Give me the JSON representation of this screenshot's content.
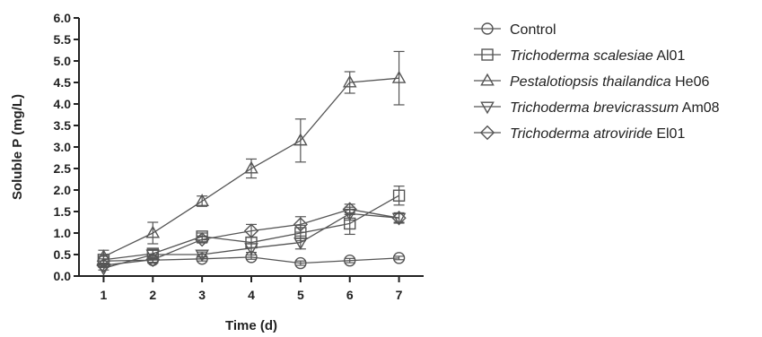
{
  "chart_data": {
    "type": "line",
    "title": "",
    "xlabel": "Time (d)",
    "ylabel": "Soluble P (mg/L)",
    "x": [
      1,
      2,
      3,
      4,
      5,
      6,
      7
    ],
    "xticks": [
      "1",
      "2",
      "3",
      "4",
      "5",
      "6",
      "7"
    ],
    "xlim": [
      0.5,
      7.5
    ],
    "ylim": [
      0,
      6
    ],
    "yticks": [
      "0.0",
      "0.5",
      "1.0",
      "1.5",
      "2.0",
      "2.5",
      "3.0",
      "3.5",
      "4.0",
      "4.5",
      "5.0",
      "5.5",
      "6.0"
    ],
    "grid": false,
    "legend_position": "right",
    "series": [
      {
        "name_parts": [
          {
            "text": "Control",
            "italic": false
          }
        ],
        "marker": "circle",
        "values": [
          0.35,
          0.37,
          0.4,
          0.44,
          0.3,
          0.36,
          0.42
        ],
        "errors": [
          0.05,
          0.05,
          0.05,
          0.05,
          0.05,
          0.05,
          0.04
        ]
      },
      {
        "name_parts": [
          {
            "text": "Trichoderma scalesiae",
            "italic": true
          },
          {
            "text": " Al01",
            "italic": false
          }
        ],
        "marker": "square",
        "values": [
          0.38,
          0.52,
          0.92,
          0.78,
          1.0,
          1.22,
          1.87
        ],
        "errors": [
          0.08,
          0.1,
          0.08,
          0.12,
          0.18,
          0.25,
          0.22
        ]
      },
      {
        "name_parts": [
          {
            "text": "Pestalotiopsis thailandica",
            "italic": true
          },
          {
            "text": " He06",
            "italic": false
          }
        ],
        "marker": "triangle-up",
        "values": [
          0.45,
          1.0,
          1.74,
          2.5,
          3.15,
          4.5,
          4.6
        ],
        "errors": [
          0.15,
          0.25,
          0.12,
          0.22,
          0.5,
          0.25,
          0.62
        ]
      },
      {
        "name_parts": [
          {
            "text": "Trichoderma brevicrassum",
            "italic": true
          },
          {
            "text": " Am08",
            "italic": false
          }
        ],
        "marker": "triangle-down",
        "values": [
          0.18,
          0.5,
          0.5,
          0.65,
          0.78,
          1.45,
          1.35
        ],
        "errors": [
          0.04,
          0.1,
          0.06,
          0.1,
          0.15,
          0.15,
          0.1
        ]
      },
      {
        "name_parts": [
          {
            "text": "Trichoderma atroviride",
            "italic": true
          },
          {
            "text": " El01",
            "italic": false
          }
        ],
        "marker": "diamond",
        "values": [
          0.25,
          0.38,
          0.85,
          1.05,
          1.2,
          1.55,
          1.35
        ],
        "errors": [
          0.05,
          0.08,
          0.08,
          0.15,
          0.18,
          0.12,
          0.12
        ]
      }
    ]
  }
}
